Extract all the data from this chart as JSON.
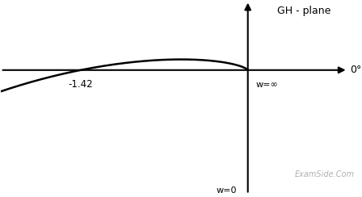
{
  "title": "GH - plane",
  "label_0deg": "0°",
  "label_winf": "w=∞",
  "label_w0": "w=0",
  "label_real": "-1.42",
  "label_watermark": "ExamSide.Com",
  "real_crossing": -1.42,
  "background_color": "#ffffff",
  "curve_color": "#000000",
  "axis_color": "#000000",
  "text_color": "#000000",
  "watermark_color": "#b0b0b0",
  "figsize": [
    4.48,
    2.44
  ],
  "dpi": 100,
  "xlim": [
    -2.1,
    0.85
  ],
  "ylim": [
    -2.5,
    1.4
  ]
}
